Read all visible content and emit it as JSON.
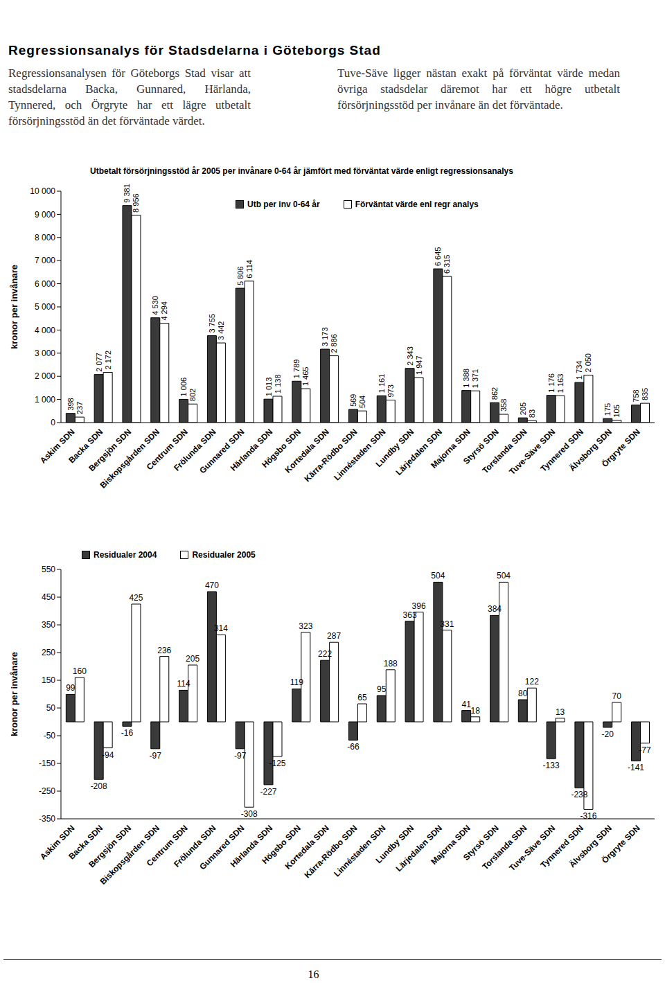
{
  "header": {
    "title": "Regressionsanalys för Stadsdelarna i Göteborgs Stad"
  },
  "text": {
    "left": "Regressionsanalysen för Göteborgs Stad visar att stadsdelarna Backa, Gunnared, Härlanda, Tynnered, och Örgryte har ett lägre utbetalt försörjningsstöd än det förväntade värdet.",
    "right": "Tuve-Säve ligger nästan exakt på förväntat värde medan övriga stadsdelar däremot har ett högre utbetalt försörjningsstöd per invånare än det förväntade."
  },
  "chart_data": [
    {
      "type": "bar",
      "title": "Utbetalt försörjningsstöd år 2005 per invånare 0-64 år jämfört med förväntat värde enligt regressionsanalys",
      "y_label": "kronor per invånare",
      "categories": [
        "Askim SDN",
        "Backa SDN",
        "Bergsjön SDN",
        "Biskopsgården SDN",
        "Centrum SDN",
        "Frölunda SDN",
        "Gunnared SDN",
        "Härlanda SDN",
        "Högsbo SDN",
        "Kortedala SDN",
        "Kärra-Rödbo SDN",
        "Linnéstaden SDN",
        "Lundby SDN",
        "Lärjedalen SDN",
        "Majorna SDN",
        "Styrsö SDN",
        "Torslanda SDN",
        "Tuve-Säve SDN",
        "Tynnered SDN",
        "Älvsborg SDN",
        "Örgryte SDN"
      ],
      "series": [
        {
          "name": "Utb per inv 0-64 år",
          "color": "#3a3a3a",
          "values": [
            398,
            2077,
            9381,
            4530,
            1006,
            3755,
            5806,
            1013,
            1789,
            3173,
            569,
            1161,
            2343,
            6645,
            1388,
            862,
            205,
            1176,
            1734,
            175,
            758
          ],
          "value_labels": [
            "398",
            "2 077",
            "9 381",
            "4 530",
            "1 006",
            "3 755",
            "5 806",
            "1 013",
            "1 789",
            "3 173",
            "569",
            "1 161",
            "2 343",
            "6 645",
            "1 388",
            "862",
            "205",
            "1 176",
            "1 734",
            "175",
            "758"
          ]
        },
        {
          "name": "Förväntat värde enl regr analys",
          "color": "#ffffff",
          "values": [
            237,
            2172,
            8956,
            4294,
            802,
            3442,
            6114,
            1138,
            1465,
            2886,
            504,
            973,
            1947,
            6315,
            1371,
            358,
            83,
            1163,
            2050,
            105,
            835
          ],
          "value_labels": [
            "237",
            "2 172",
            "8 956",
            "4 294",
            "802",
            "3 442",
            "6 114",
            "1 138",
            "1 465",
            "2 886",
            "504",
            "973",
            "1 947",
            "6 315",
            "1 371",
            "358",
            "83",
            "1 163",
            "2 050",
            "105",
            "835"
          ]
        }
      ],
      "ylim": [
        0,
        10000
      ],
      "yticks": [
        0,
        {
          "value": 1000,
          "label": "1 000"
        },
        {
          "value": 2000,
          "label": "2 000"
        },
        {
          "value": 3000,
          "label": "3 000"
        },
        {
          "value": 4000,
          "label": "4 000"
        },
        {
          "value": 5000,
          "label": "5 000"
        },
        {
          "value": 6000,
          "label": "6 000"
        },
        {
          "value": 7000,
          "label": "7 000"
        },
        {
          "value": 8000,
          "label": "8 000"
        },
        {
          "value": 9000,
          "label": "9 000"
        },
        {
          "value": 10000,
          "label": "10 000"
        }
      ],
      "grid": false,
      "legend": "top",
      "data_labels": true
    },
    {
      "type": "bar",
      "y_label": "kronor per invånare",
      "categories": [
        "Askim SDN",
        "Backa SDN",
        "Bergsjön SDN",
        "Biskopsgården SDN",
        "Centrum SDN",
        "Frölunda SDN",
        "Gunnared SDN",
        "Härlanda SDN",
        "Högsbo SDN",
        "Kortedala SDN",
        "Kärra-Rödbo SDN",
        "Linnéstaden SDN",
        "Lundby SDN",
        "Lärjedalen SDN",
        "Majorna SDN",
        "Styrsö SDN",
        "Torslanda SDN",
        "Tuve-Säve SDN",
        "Tynnered SDN",
        "Älvsborg SDN",
        "Örgryte SDN"
      ],
      "series": [
        {
          "name": "Residualer 2004",
          "color": "#3a3a3a",
          "values": [
            99,
            -208,
            -16,
            -97,
            114,
            470,
            -97,
            -227,
            119,
            222,
            -66,
            95,
            363,
            504,
            41,
            384,
            80,
            -133,
            -238,
            -20,
            -141
          ]
        },
        {
          "name": "Residualer 2005",
          "color": "#ffffff",
          "values": [
            160,
            -94,
            425,
            236,
            205,
            314,
            -308,
            -125,
            323,
            287,
            65,
            188,
            396,
            331,
            18,
            504,
            122,
            13,
            -316,
            70,
            -77
          ]
        }
      ],
      "ylim": [
        -350,
        550
      ],
      "yticks": [
        -350,
        -250,
        -150,
        -50,
        50,
        150,
        250,
        350,
        450,
        550
      ],
      "grid": false,
      "legend": "top left",
      "data_labels": true
    }
  ],
  "page_number": "16"
}
